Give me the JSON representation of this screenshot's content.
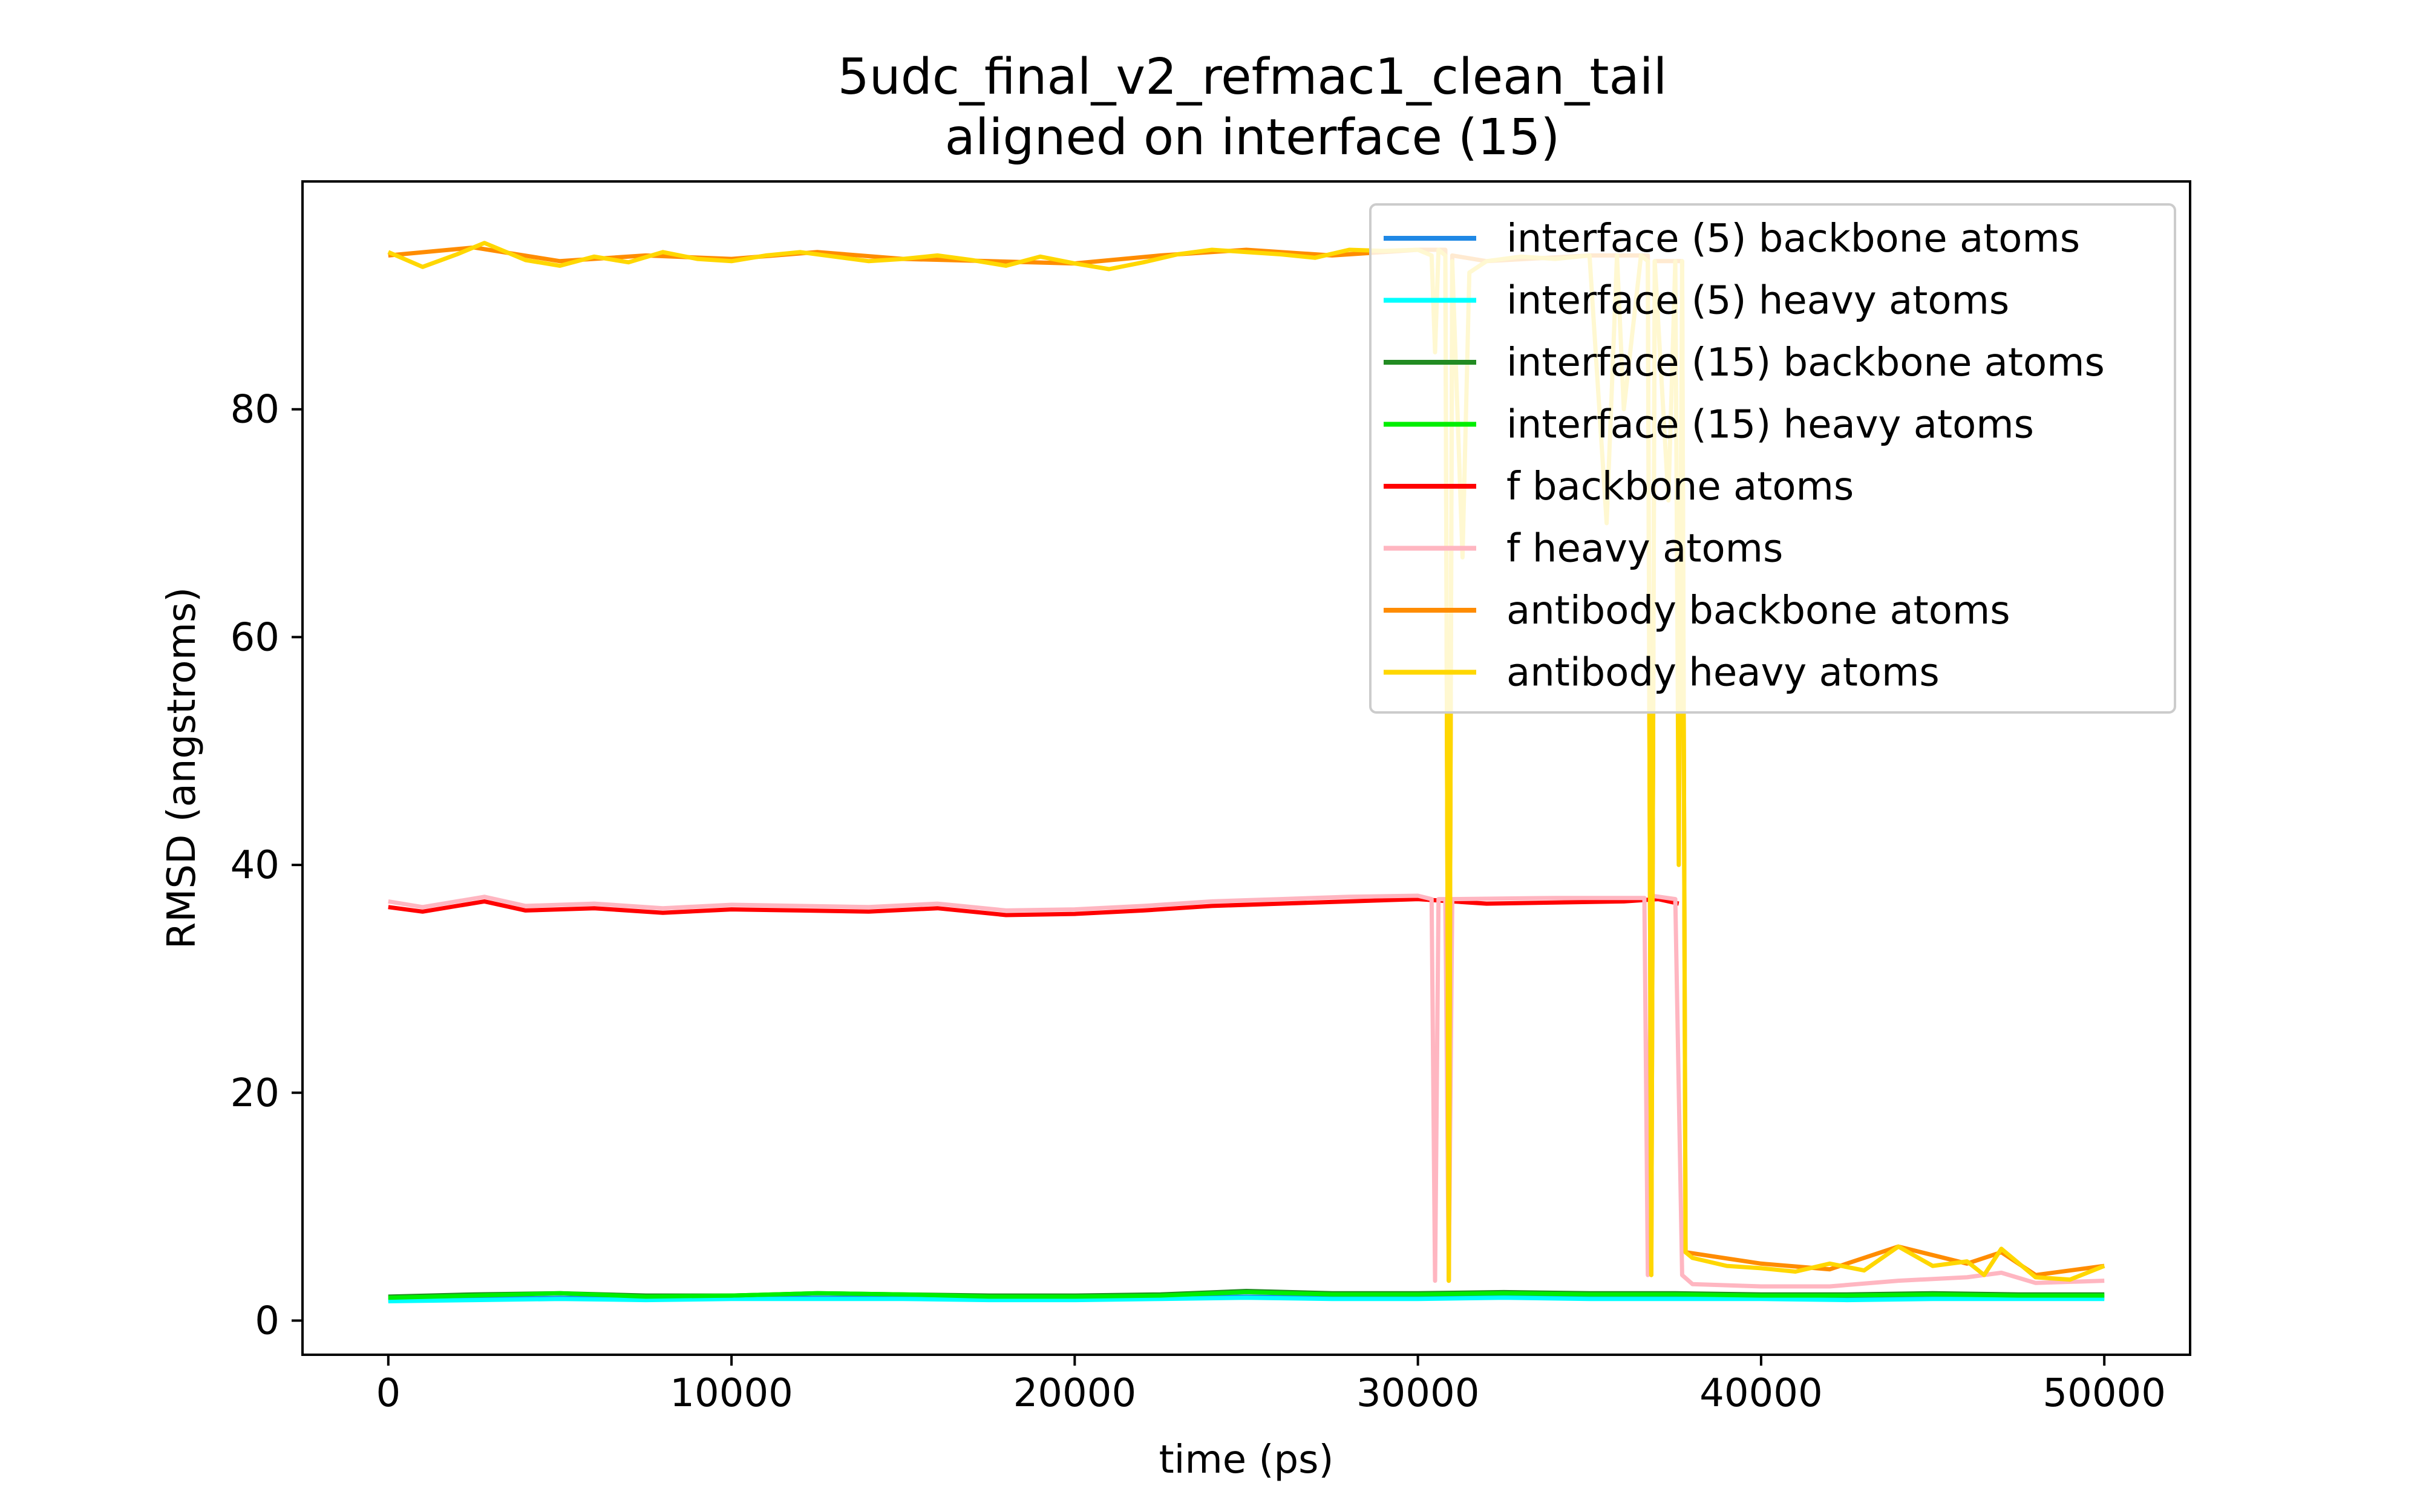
{
  "chart_data": {
    "type": "line",
    "title": "5udc_final_v2_refmac1_clean_tail",
    "subtitle": "aligned on interface (15)",
    "xlabel": "time (ps)",
    "ylabel": "RMSD (angstroms)",
    "xlim": [
      -2500,
      52500
    ],
    "ylim": [
      -3,
      100
    ],
    "xticks": [
      0,
      10000,
      20000,
      30000,
      40000,
      50000
    ],
    "xtick_labels": [
      "0",
      "10000",
      "20000",
      "30000",
      "40000",
      "50000"
    ],
    "yticks": [
      0,
      20,
      40,
      60,
      80
    ],
    "ytick_labels": [
      "0",
      "20",
      "40",
      "60",
      "80"
    ],
    "grid": false,
    "legend_position": "top-right",
    "series": [
      {
        "name": "interface (5) backbone atoms",
        "color": "#1f88e5",
        "x": [
          0,
          2500,
          5000,
          7500,
          10000,
          12500,
          15000,
          17500,
          20000,
          22500,
          25000,
          27500,
          30000,
          32500,
          35000,
          37500,
          40000,
          42500,
          45000,
          47500,
          50000
        ],
        "y": [
          1.8,
          1.9,
          2.0,
          1.9,
          2.0,
          2.0,
          2.0,
          1.9,
          1.9,
          2.0,
          2.1,
          2.0,
          2.0,
          2.1,
          2.0,
          2.0,
          2.0,
          1.9,
          2.0,
          2.0,
          2.0
        ]
      },
      {
        "name": "interface (5) heavy atoms",
        "color": "#00ffff",
        "x": [
          0,
          2500,
          5000,
          7500,
          10000,
          12500,
          15000,
          17500,
          20000,
          22500,
          25000,
          27500,
          30000,
          32500,
          35000,
          37500,
          40000,
          42500,
          45000,
          47500,
          50000
        ],
        "y": [
          1.7,
          1.8,
          1.9,
          1.8,
          1.9,
          1.9,
          1.9,
          1.8,
          1.8,
          1.9,
          2.0,
          1.9,
          1.9,
          2.0,
          1.9,
          1.9,
          1.9,
          1.8,
          1.9,
          1.9,
          1.9
        ]
      },
      {
        "name": "interface (15) backbone atoms",
        "color": "#228b22",
        "x": [
          0,
          2500,
          5000,
          7500,
          10000,
          12500,
          15000,
          17500,
          20000,
          22500,
          25000,
          27500,
          30000,
          32500,
          35000,
          37500,
          40000,
          42500,
          45000,
          47500,
          50000
        ],
        "y": [
          2.1,
          2.3,
          2.4,
          2.2,
          2.2,
          2.4,
          2.3,
          2.2,
          2.2,
          2.3,
          2.6,
          2.4,
          2.4,
          2.5,
          2.4,
          2.4,
          2.3,
          2.3,
          2.4,
          2.3,
          2.3
        ]
      },
      {
        "name": "interface (15) heavy atoms",
        "color": "#00ee00",
        "x": [
          0,
          2500,
          5000,
          7500,
          10000,
          12500,
          15000,
          17500,
          20000,
          22500,
          25000,
          27500,
          30000,
          32500,
          35000,
          37500,
          40000,
          42500,
          45000,
          47500,
          50000
        ],
        "y": [
          2.0,
          2.2,
          2.4,
          2.1,
          2.2,
          2.4,
          2.3,
          2.1,
          2.1,
          2.2,
          2.5,
          2.3,
          2.3,
          2.4,
          2.3,
          2.3,
          2.2,
          2.2,
          2.3,
          2.2,
          2.2
        ]
      },
      {
        "name": "f backbone atoms",
        "color": "#ff0000",
        "x": [
          0,
          1000,
          2800,
          4000,
          6000,
          8000,
          10000,
          12000,
          14000,
          16000,
          18000,
          20000,
          22000,
          24000,
          26000,
          28000,
          30000,
          32000,
          34000,
          36000,
          37000,
          37600
        ],
        "y": [
          36.3,
          35.9,
          36.8,
          36.0,
          36.2,
          35.8,
          36.1,
          36.0,
          35.9,
          36.2,
          35.6,
          35.7,
          36.0,
          36.4,
          36.6,
          36.8,
          37.0,
          36.6,
          36.7,
          36.8,
          37.0,
          36.6
        ]
      },
      {
        "name": "f heavy atoms",
        "color": "#ffb6c1",
        "x": [
          0,
          1000,
          2800,
          4000,
          6000,
          8000,
          10000,
          12000,
          14000,
          16000,
          18000,
          20000,
          22000,
          24000,
          26000,
          28000,
          30000,
          30400,
          30500,
          30600,
          30800,
          30900,
          31000,
          34000,
          36600,
          36700,
          36800,
          37500,
          37700,
          38000,
          40000,
          42000,
          44000,
          46000,
          47000,
          48000,
          50000
        ],
        "y": [
          36.8,
          36.3,
          37.2,
          36.4,
          36.6,
          36.2,
          36.5,
          36.4,
          36.3,
          36.6,
          36.0,
          36.1,
          36.4,
          36.8,
          37.0,
          37.2,
          37.3,
          37.0,
          3.5,
          37.0,
          37.0,
          3.5,
          37.0,
          37.1,
          37.1,
          4.0,
          37.3,
          37.0,
          4.0,
          3.2,
          3.0,
          3.0,
          3.5,
          3.8,
          4.2,
          3.3,
          3.5
        ]
      },
      {
        "name": "antibody backbone atoms",
        "color": "#ff8c00",
        "x": [
          0,
          2500,
          5000,
          7500,
          10000,
          12500,
          15000,
          17500,
          20000,
          22500,
          25000,
          27500,
          30000,
          30800,
          30900,
          31000,
          32000,
          35000,
          36700,
          36800,
          36900,
          37500,
          37700,
          37800,
          40000,
          42000,
          44000,
          46000,
          47000,
          48000,
          50000
        ],
        "y": [
          93.5,
          94.2,
          93.0,
          93.5,
          93.2,
          93.8,
          93.2,
          93.0,
          92.8,
          93.5,
          94.0,
          93.5,
          94.0,
          94.0,
          3.5,
          93.5,
          93.0,
          93.5,
          93.5,
          4.0,
          93.0,
          93.0,
          93.0,
          6.0,
          5.0,
          4.5,
          6.5,
          5.0,
          6.0,
          4.0,
          4.8
        ]
      },
      {
        "name": "antibody heavy atoms",
        "color": "#ffd700",
        "x": [
          0,
          1000,
          2000,
          2800,
          4000,
          5000,
          6000,
          7000,
          8000,
          9000,
          10000,
          11000,
          12000,
          13000,
          14000,
          15000,
          16000,
          17000,
          18000,
          19000,
          20000,
          21000,
          22000,
          23000,
          24000,
          25000,
          26000,
          27000,
          28000,
          29000,
          30000,
          30400,
          30500,
          30600,
          30800,
          30900,
          31000,
          31300,
          31500,
          32000,
          33000,
          34000,
          35000,
          35500,
          35800,
          36000,
          36500,
          36700,
          36800,
          36900,
          37300,
          37500,
          37600,
          37700,
          37800,
          38000,
          39000,
          40000,
          41000,
          42000,
          43000,
          44000,
          45000,
          46000,
          46500,
          47000,
          48000,
          49000,
          50000
        ],
        "y": [
          93.8,
          92.5,
          93.6,
          94.6,
          93.1,
          92.6,
          93.4,
          92.9,
          93.8,
          93.2,
          93.0,
          93.5,
          93.8,
          93.4,
          93.0,
          93.2,
          93.5,
          93.1,
          92.6,
          93.4,
          92.8,
          92.3,
          92.9,
          93.6,
          94.0,
          93.8,
          93.6,
          93.3,
          94.0,
          93.9,
          94.0,
          93.5,
          85.0,
          94.0,
          93.5,
          3.5,
          93.0,
          67.0,
          92.0,
          93.0,
          93.4,
          93.2,
          93.5,
          70.0,
          93.5,
          80.0,
          93.5,
          93.0,
          4.0,
          93.0,
          72.0,
          93.0,
          40.0,
          93.0,
          6.0,
          5.5,
          4.8,
          4.6,
          4.3,
          5.0,
          4.4,
          6.5,
          4.8,
          5.2,
          4.0,
          6.3,
          3.8,
          3.6,
          4.8
        ]
      }
    ]
  }
}
